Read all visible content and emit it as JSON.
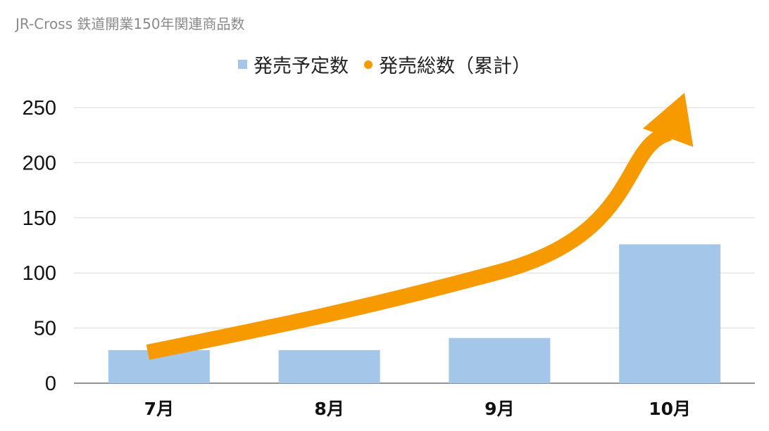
{
  "chart_data": {
    "type": "bar",
    "title": "JR-Cross 鉄道開業150年関連商品数",
    "categories": [
      "7月",
      "8月",
      "9月",
      "10月"
    ],
    "series": [
      {
        "name": "発売予定数",
        "type": "bar",
        "color": "#a4c6e8",
        "values": [
          30,
          30,
          41,
          126
        ]
      },
      {
        "name": "発売総数（累計）",
        "type": "line",
        "color": "#f69a00",
        "values": [
          30,
          60,
          101,
          227
        ]
      }
    ],
    "yticks": [
      0,
      50,
      100,
      150,
      200,
      250
    ],
    "ylim": [
      0,
      250
    ],
    "grid": true,
    "legend_position": "top"
  }
}
